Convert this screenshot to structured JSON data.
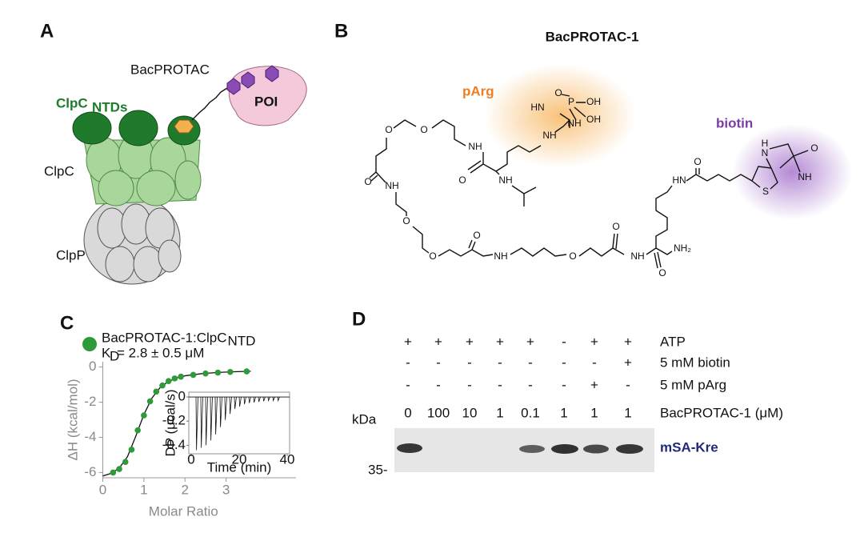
{
  "panel_a": {
    "label": "A",
    "linker": "BacPROTAC",
    "poi": "POI",
    "clpc_ntds": "ClpC",
    "clpc_ntds_sub": "NTDs",
    "clpc": "ClpC",
    "clpp": "ClpP"
  },
  "panel_b": {
    "label": "B",
    "title": "BacPROTAC-1",
    "parg": "pArg",
    "biotin": "biotin",
    "atoms": [
      "O",
      "O",
      "NH",
      "O",
      "NH",
      "HN",
      "NH",
      "NH",
      "P",
      "O",
      "OH",
      "OH",
      "O",
      "NH",
      "O",
      "O",
      "O",
      "NH",
      "O",
      "O",
      "NH",
      "O",
      "NH₂",
      "HN",
      "O",
      "S",
      "H",
      "N",
      "O",
      "NH"
    ]
  },
  "chart_data": {
    "type": "scatter",
    "panel_label": "C",
    "xlabel": "Molar Ratio",
    "ylabel": "ΔH (kcal/mol)",
    "xlim": [
      0,
      4.7
    ],
    "ylim": [
      -6.3,
      0.3
    ],
    "xticks": [
      0,
      1,
      2,
      3
    ],
    "yticks": [
      0,
      -2,
      -4,
      -6
    ],
    "series": [
      {
        "name": "BacPROTAC-1:ClpC",
        "name_subscript": "NTD",
        "color": "#2e9a3a",
        "x": [
          0.25,
          0.4,
          0.55,
          0.7,
          0.85,
          1.0,
          1.15,
          1.3,
          1.45,
          1.6,
          1.75,
          1.9,
          2.2,
          2.5,
          2.8,
          3.1,
          3.5
        ],
        "values": [
          -6.0,
          -5.8,
          -5.4,
          -4.7,
          -3.6,
          -2.75,
          -1.95,
          -1.4,
          -1.05,
          -0.8,
          -0.65,
          -0.55,
          -0.45,
          -0.37,
          -0.32,
          -0.28,
          -0.25
        ]
      }
    ],
    "fit": {
      "x": [
        0,
        0.2,
        0.4,
        0.6,
        0.8,
        1.0,
        1.2,
        1.4,
        1.6,
        1.8,
        2.0,
        2.4,
        2.8,
        3.2,
        3.6
      ],
      "values": [
        -6.2,
        -6.05,
        -5.75,
        -5.1,
        -3.95,
        -2.7,
        -1.75,
        -1.15,
        -0.82,
        -0.62,
        -0.5,
        -0.38,
        -0.31,
        -0.27,
        -0.24
      ]
    },
    "annotation": {
      "symbol": "K",
      "subscript": "D",
      "text": "= 2.8 ± 0.5 μM"
    },
    "inset": {
      "xlabel": "Time (min)",
      "ylabel": "DP (μcal/s)",
      "xlim": [
        -1,
        41
      ],
      "ylim": [
        -0.47,
        0.04
      ],
      "xticks": [
        0,
        20,
        40
      ],
      "yticks": [
        0,
        -0.2,
        -0.4
      ],
      "x": [
        2,
        4,
        6,
        8,
        10,
        12,
        14,
        16,
        18,
        20,
        22,
        24,
        26,
        28,
        30,
        32,
        34,
        36
      ],
      "values": [
        -0.44,
        -0.42,
        -0.4,
        -0.36,
        -0.31,
        -0.25,
        -0.19,
        -0.14,
        -0.1,
        -0.08,
        -0.06,
        -0.05,
        -0.045,
        -0.04,
        -0.035,
        -0.03,
        -0.03,
        -0.03
      ]
    }
  },
  "panel_d": {
    "label": "D",
    "kda": "kDa",
    "marker": "35-",
    "band": "mSA-Kre",
    "rows": [
      {
        "name": "ATP",
        "lanes": [
          "+",
          "+",
          "+",
          "+",
          "+",
          "-",
          "+",
          "+"
        ]
      },
      {
        "name": "5 mM biotin",
        "lanes": [
          "-",
          "-",
          "-",
          "-",
          "-",
          "-",
          "-",
          "+"
        ]
      },
      {
        "name": "5 mM pArg",
        "lanes": [
          "-",
          "-",
          "-",
          "-",
          "-",
          "-",
          "+",
          "-"
        ]
      },
      {
        "name": "BacPROTAC-1 (μM)",
        "lanes": [
          "0",
          "100",
          "10",
          "1",
          "0.1",
          "1",
          "1",
          "1"
        ]
      }
    ]
  }
}
